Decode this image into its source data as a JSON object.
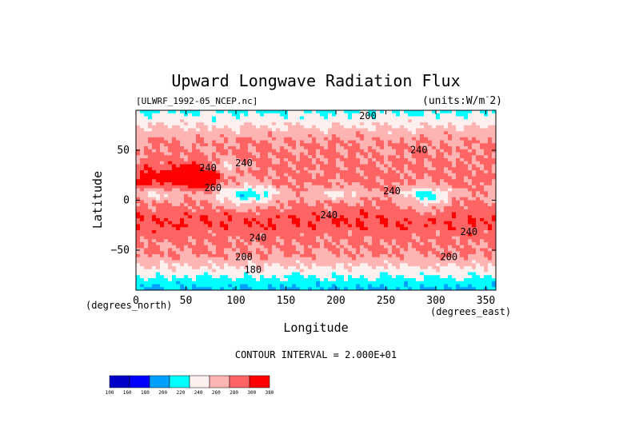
{
  "chart_data": {
    "type": "heatmap",
    "title": "Upward Longwave Radiation Flux",
    "subtitle_left": "[ULWRF_1992-05_NCEP.nc]",
    "units_label": "(units:W/m^-2)",
    "units_prefix": "(units:W/m",
    "units_super": "-",
    "units_suffix": "2)",
    "xlabel": "Longitude",
    "ylabel": "Latitude",
    "x_units_label": "(degrees_east)",
    "y_units_label": "(degrees_north)",
    "x_ticks": [
      0,
      50,
      100,
      150,
      200,
      250,
      300,
      350
    ],
    "y_ticks": [
      50,
      0,
      -50
    ],
    "xlim": [
      0,
      360
    ],
    "ylim": [
      -90,
      90
    ],
    "contour_interval_label": "CONTOUR INTERVAL = 2.000E+01",
    "colorbar": {
      "levels": [
        100,
        160,
        180,
        200,
        220,
        240,
        260,
        280,
        300,
        380
      ],
      "level_labels": [
        "100",
        "160",
        "180",
        "200",
        "220",
        "240",
        "260",
        "280",
        "300",
        "380"
      ],
      "colors": [
        "#0000c8",
        "#0000ff",
        "#00a0ff",
        "#00ffff",
        "#fff0f0",
        "#ffb4b4",
        "#ff6464",
        "#ff0000"
      ]
    },
    "contour_labels": [
      {
        "text": "200",
        "lon": 232,
        "lat": 84
      },
      {
        "text": "240",
        "lon": 283,
        "lat": 50
      },
      {
        "text": "240",
        "lon": 108,
        "lat": 37
      },
      {
        "text": "240",
        "lon": 72,
        "lat": 32
      },
      {
        "text": "260",
        "lon": 77,
        "lat": 12
      },
      {
        "text": "240",
        "lon": 256,
        "lat": 9
      },
      {
        "text": "240",
        "lon": 193,
        "lat": -15
      },
      {
        "text": "240",
        "lon": 122,
        "lat": -38
      },
      {
        "text": "240",
        "lon": 333,
        "lat": -32
      },
      {
        "text": "200",
        "lon": 108,
        "lat": -57
      },
      {
        "text": "200",
        "lon": 313,
        "lat": -57
      },
      {
        "text": "180",
        "lon": 117,
        "lat": -70
      }
    ]
  }
}
